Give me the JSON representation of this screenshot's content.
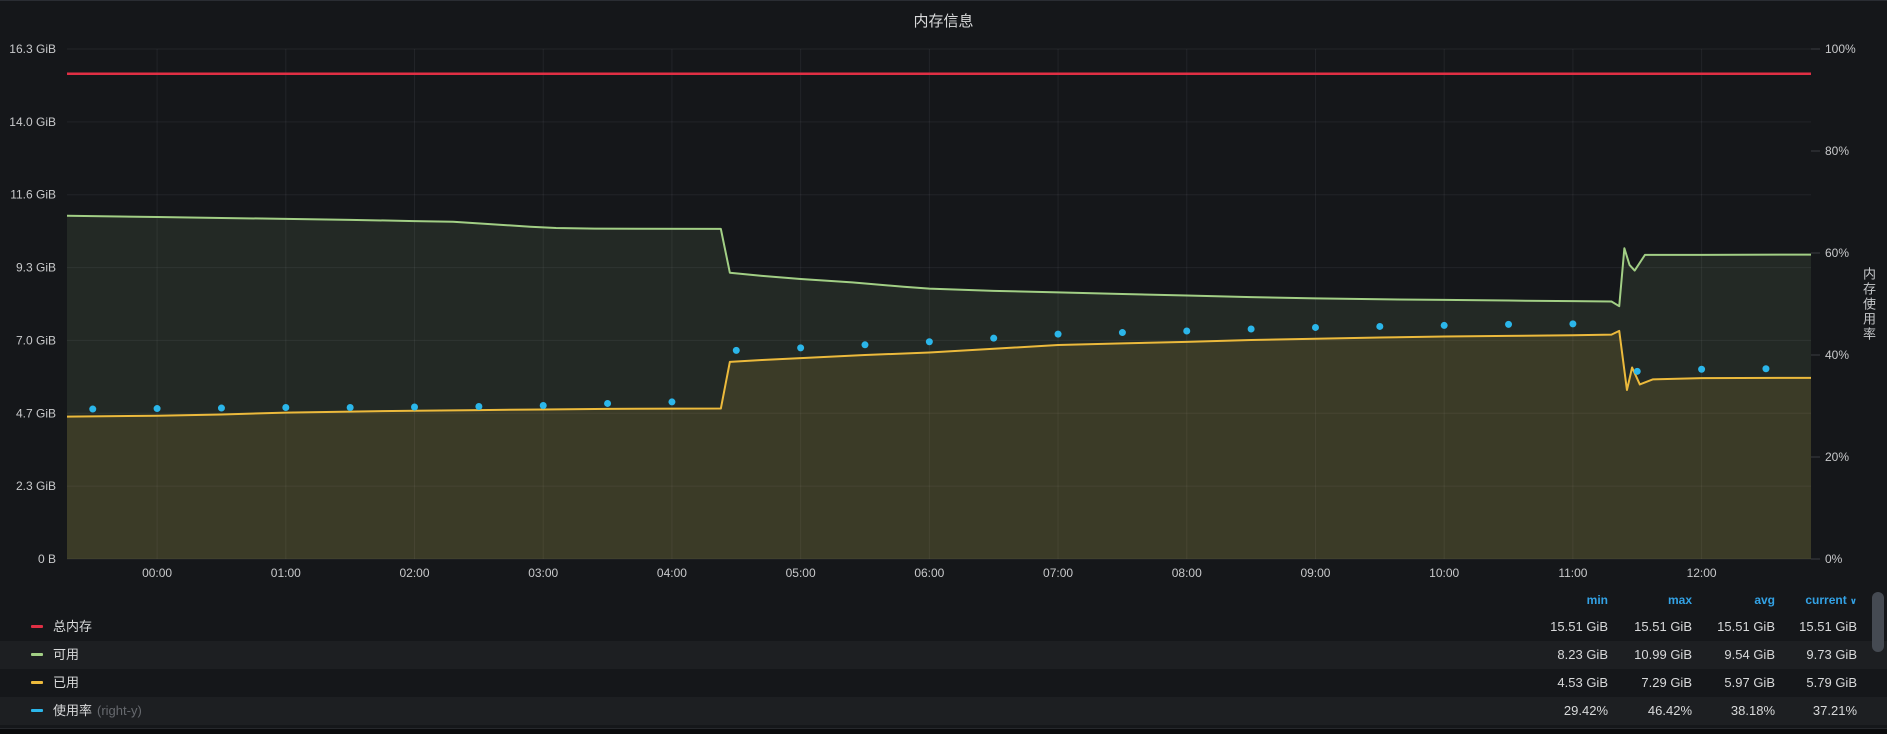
{
  "panel": {
    "title": "内存信息"
  },
  "chart_data": {
    "type": "line",
    "title": "内存信息",
    "x_axis": {
      "hours": [
        0,
        1,
        2,
        3,
        4,
        5,
        6,
        7,
        8,
        9,
        10,
        11,
        12
      ],
      "labels": [
        "00:00",
        "01:00",
        "02:00",
        "03:00",
        "04:00",
        "05:00",
        "06:00",
        "07:00",
        "08:00",
        "09:00",
        "10:00",
        "11:00",
        "12:00"
      ],
      "range_hours": [
        -0.7,
        12.85
      ]
    },
    "y_left": {
      "unit": "GiB",
      "min": 0,
      "max": 16.3,
      "ticks": [
        "0 B",
        "2.3 GiB",
        "4.7 GiB",
        "7.0 GiB",
        "9.3 GiB",
        "11.6 GiB",
        "14.0 GiB",
        "16.3 GiB"
      ]
    },
    "y_right": {
      "label": "内存使用率",
      "min": 0,
      "max": 100,
      "ticks": [
        "0%",
        "20%",
        "40%",
        "60%",
        "80%",
        "100%"
      ]
    },
    "grid": true,
    "legend_position": "bottom-table",
    "series": [
      {
        "name": "可用",
        "axis": "left",
        "type": "area",
        "color": "#a2cf85",
        "fill_opacity": 0.1,
        "width": 2,
        "points": [
          [
            -0.7,
            10.97
          ],
          [
            0,
            10.93
          ],
          [
            0.5,
            10.9
          ],
          [
            1,
            10.87
          ],
          [
            1.5,
            10.84
          ],
          [
            2,
            10.8
          ],
          [
            2.3,
            10.78
          ],
          [
            2.6,
            10.7
          ],
          [
            2.9,
            10.62
          ],
          [
            3.1,
            10.58
          ],
          [
            3.4,
            10.56
          ],
          [
            4.38,
            10.55
          ],
          [
            4.45,
            9.15
          ],
          [
            4.7,
            9.05
          ],
          [
            5,
            8.95
          ],
          [
            5.4,
            8.84
          ],
          [
            5.8,
            8.7
          ],
          [
            6,
            8.64
          ],
          [
            6.5,
            8.57
          ],
          [
            7,
            8.52
          ],
          [
            7.5,
            8.47
          ],
          [
            8,
            8.42
          ],
          [
            8.5,
            8.37
          ],
          [
            9,
            8.33
          ],
          [
            9.5,
            8.3
          ],
          [
            10,
            8.28
          ],
          [
            10.5,
            8.26
          ],
          [
            11,
            8.24
          ],
          [
            11.3,
            8.23
          ],
          [
            11.36,
            8.08
          ],
          [
            11.4,
            9.93
          ],
          [
            11.44,
            9.4
          ],
          [
            11.48,
            9.22
          ],
          [
            11.56,
            9.72
          ],
          [
            12,
            9.72
          ],
          [
            12.85,
            9.73
          ]
        ]
      },
      {
        "name": "已用",
        "axis": "left",
        "type": "area",
        "color": "#ecba3c",
        "fill_opacity": 0.12,
        "width": 2,
        "points": [
          [
            -0.7,
            4.55
          ],
          [
            0,
            4.58
          ],
          [
            0.5,
            4.62
          ],
          [
            1,
            4.68
          ],
          [
            1.5,
            4.71
          ],
          [
            2,
            4.74
          ],
          [
            2.5,
            4.76
          ],
          [
            3,
            4.78
          ],
          [
            3.5,
            4.8
          ],
          [
            4.38,
            4.81
          ],
          [
            4.45,
            6.3
          ],
          [
            4.7,
            6.36
          ],
          [
            5,
            6.42
          ],
          [
            5.5,
            6.52
          ],
          [
            6,
            6.6
          ],
          [
            6.5,
            6.72
          ],
          [
            7,
            6.84
          ],
          [
            7.5,
            6.89
          ],
          [
            8,
            6.94
          ],
          [
            8.5,
            7.0
          ],
          [
            9,
            7.04
          ],
          [
            9.5,
            7.08
          ],
          [
            10,
            7.11
          ],
          [
            10.5,
            7.13
          ],
          [
            11,
            7.15
          ],
          [
            11.3,
            7.17
          ],
          [
            11.36,
            7.29
          ],
          [
            11.42,
            5.4
          ],
          [
            11.46,
            6.12
          ],
          [
            11.52,
            5.58
          ],
          [
            11.62,
            5.74
          ],
          [
            12,
            5.78
          ],
          [
            12.85,
            5.79
          ]
        ]
      },
      {
        "name": "总内存",
        "axis": "left",
        "type": "line",
        "color": "#e02f44",
        "width": 2.5,
        "points": [
          [
            -0.7,
            15.51
          ],
          [
            12.85,
            15.51
          ]
        ]
      },
      {
        "name": "使用率",
        "axis": "right",
        "type": "points",
        "color": "#2bb6ea",
        "radius": 3.5,
        "points": [
          [
            -0.5,
            29.4
          ],
          [
            0,
            29.5
          ],
          [
            0.5,
            29.6
          ],
          [
            1,
            29.7
          ],
          [
            1.5,
            29.7
          ],
          [
            2,
            29.8
          ],
          [
            2.5,
            29.9
          ],
          [
            3,
            30.1
          ],
          [
            3.5,
            30.5
          ],
          [
            4,
            30.8
          ],
          [
            4.5,
            40.9
          ],
          [
            5,
            41.4
          ],
          [
            5.5,
            42.0
          ],
          [
            6,
            42.6
          ],
          [
            6.5,
            43.3
          ],
          [
            7,
            44.1
          ],
          [
            7.5,
            44.4
          ],
          [
            8,
            44.7
          ],
          [
            8.5,
            45.1
          ],
          [
            9,
            45.4
          ],
          [
            9.5,
            45.6
          ],
          [
            10,
            45.8
          ],
          [
            10.5,
            46.0
          ],
          [
            11,
            46.1
          ],
          [
            11.5,
            36.8
          ],
          [
            12,
            37.2
          ],
          [
            12.5,
            37.3
          ]
        ]
      }
    ]
  },
  "legend": {
    "columns": [
      "min",
      "max",
      "avg",
      "current"
    ],
    "sort_column": "current",
    "sort_caret": "∨",
    "rows": [
      {
        "label": "总内存",
        "note": "",
        "color": "#e02f44",
        "values": [
          "15.51 GiB",
          "15.51 GiB",
          "15.51 GiB",
          "15.51 GiB"
        ]
      },
      {
        "label": "可用",
        "note": "",
        "color": "#a2cf85",
        "values": [
          "8.23 GiB",
          "10.99 GiB",
          "9.54 GiB",
          "9.73 GiB"
        ]
      },
      {
        "label": "已用",
        "note": "",
        "color": "#ecba3c",
        "values": [
          "4.53 GiB",
          "7.29 GiB",
          "5.97 GiB",
          "5.79 GiB"
        ]
      },
      {
        "label": "使用率",
        "note": "(right-y)",
        "color": "#2bb6ea",
        "values": [
          "29.42%",
          "46.42%",
          "38.18%",
          "37.21%"
        ]
      }
    ]
  },
  "colors": {
    "panel_bg": "#15171a",
    "grid": "rgba(210,215,230,0.07)",
    "axis_text": "#c8c9cb",
    "value_text": "#d8d9da",
    "header_blue": "#33a2e5"
  }
}
